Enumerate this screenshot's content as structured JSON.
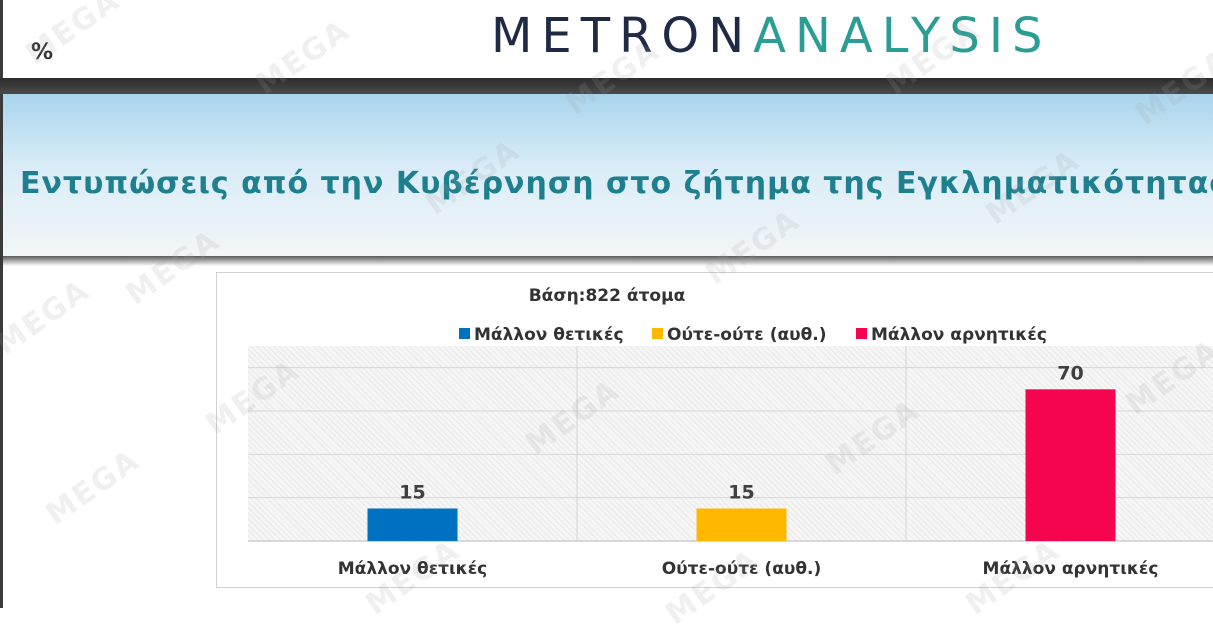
{
  "header": {
    "percent_symbol": "%",
    "logo_part1": "METRON",
    "logo_part2": "ANALYSIS"
  },
  "page_title": "Εντυπώσεις από την Κυβέρνηση στο ζήτημα της Εγκληματικότητας",
  "watermark_text": "MEGA",
  "chart_data": {
    "type": "bar",
    "title": "Βάση:822 άτομα",
    "categories": [
      "Μάλλον θετικές",
      "Ούτε-ούτε (αυθ.)",
      "Μάλλον αρνητικές"
    ],
    "values": [
      15,
      15,
      70
    ],
    "colors": [
      "#0070c0",
      "#ffb800",
      "#f5054f"
    ],
    "legend": [
      "Μάλλον θετικές",
      "Ούτε-ούτε (αυθ.)",
      "Μάλλον αρνητικές"
    ],
    "legend_placement": "top",
    "ylim": [
      0,
      90
    ],
    "grid": true
  }
}
